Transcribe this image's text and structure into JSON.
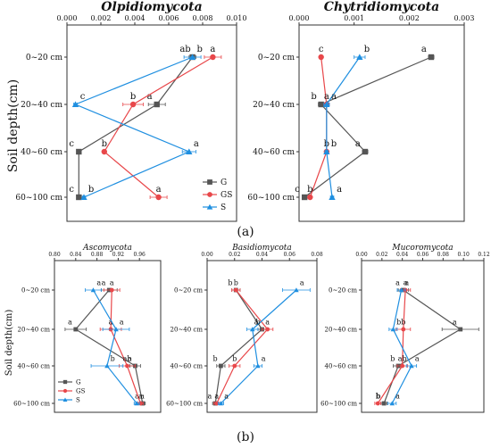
{
  "panel_labels": [
    "(a)",
    "(b)"
  ],
  "y_axis_title_a": "Soil depth(cm)",
  "y_axis_title_b": "Soil depth(cm)",
  "colors": {
    "G": "#555555",
    "GS": "#e8474a",
    "S": "#1f8fe0"
  },
  "legend": [
    {
      "key": "G",
      "label": "G",
      "marker": "square"
    },
    {
      "key": "GS",
      "label": "GS",
      "marker": "circle"
    },
    {
      "key": "S",
      "label": "S",
      "marker": "triangle"
    }
  ],
  "chart_data": [
    {
      "id": "olpidiomycota",
      "type": "line",
      "title": "Olpidiomycota",
      "ylabel": "Soil depth(cm)",
      "categories": [
        "0~20 cm",
        "20~40 cm",
        "40~60 cm",
        "60~100 cm"
      ],
      "xlim": [
        0,
        0.01
      ],
      "xticks": [
        0,
        0.002,
        0.004,
        0.006,
        0.008,
        0.01
      ],
      "xtick_labels": [
        "0.000",
        "0.002",
        "0.004",
        "0.006",
        "0.008",
        "0.010"
      ],
      "legend_position": "bottom-right",
      "series": [
        {
          "name": "G",
          "values": [
            0.0074,
            0.0053,
            0.0007,
            0.0007
          ],
          "errors": [
            0.0002,
            0.0005,
            0.0001,
            0.0001
          ],
          "letters": [
            "ab",
            "a",
            "c",
            "c"
          ]
        },
        {
          "name": "GS",
          "values": [
            0.0086,
            0.0039,
            0.0022,
            0.0054
          ],
          "errors": [
            0.0005,
            0.0006,
            0.0001,
            0.0005
          ],
          "letters": [
            "a",
            "b",
            "b",
            "a"
          ]
        },
        {
          "name": "S",
          "values": [
            0.0074,
            0.0005,
            0.0072,
            0.001
          ],
          "errors": [
            0.0005,
            0.0001,
            0.0004,
            0.0001
          ],
          "letters": [
            "b",
            "c",
            "a",
            "b"
          ]
        }
      ]
    },
    {
      "id": "chytridiomycota",
      "type": "line",
      "title": "Chytridiomycota",
      "categories": [
        "0~20 cm",
        "20~40 cm",
        "40~60 cm",
        "60~100 cm"
      ],
      "xlim": [
        0,
        0.003
      ],
      "xticks": [
        0,
        0.001,
        0.002,
        0.003
      ],
      "xtick_labels": [
        "0.000",
        "0.001",
        "0.002",
        "0.003"
      ],
      "series": [
        {
          "name": "G",
          "values": [
            0.0024,
            0.0004,
            0.0012,
            0.0001
          ],
          "errors": [
            5e-05,
            5e-05,
            5e-05,
            3e-05
          ],
          "letters": [
            "a",
            "b",
            "a",
            "c"
          ]
        },
        {
          "name": "GS",
          "values": [
            0.0004,
            0.0005,
            0.0005,
            0.0002
          ],
          "errors": [
            3e-05,
            5e-05,
            3e-05,
            3e-05
          ],
          "letters": [
            "c",
            "a",
            "b",
            "b"
          ]
        },
        {
          "name": "S",
          "values": [
            0.0011,
            0.0005,
            0.0005,
            0.0006
          ],
          "errors": [
            0.0001,
            5e-05,
            3e-05,
            3e-05
          ],
          "letters": [
            "b",
            "a",
            "b",
            "a"
          ]
        }
      ]
    },
    {
      "id": "ascomycota",
      "type": "line",
      "title": "Ascomycota",
      "ylabel": "Soil depth(cm)",
      "categories": [
        "0~20 cm",
        "20~40 cm",
        "40~60 cm",
        "60~100 cm"
      ],
      "xlim": [
        0.8,
        1.0
      ],
      "xticks": [
        0.8,
        0.84,
        0.88,
        0.92,
        0.96
      ],
      "xtick_labels": [
        "0.80",
        "0.84",
        "0.88",
        "0.92",
        "0.96"
      ],
      "legend_position": "bottom-left",
      "series": [
        {
          "name": "G",
          "values": [
            0.903,
            0.84,
            0.952,
            0.966
          ],
          "errors": [
            0.015,
            0.02,
            0.01,
            0.005
          ],
          "letters": [
            "a",
            "a",
            "a",
            "a"
          ]
        },
        {
          "name": "GS",
          "values": [
            0.908,
            0.906,
            0.937,
            0.962
          ],
          "errors": [
            0.015,
            0.02,
            0.015,
            0.005
          ],
          "letters": [
            "a",
            "a",
            "ab",
            "a"
          ]
        },
        {
          "name": "S",
          "values": [
            0.873,
            0.916,
            0.899,
            0.955
          ],
          "errors": [
            0.015,
            0.025,
            0.03,
            0.005
          ],
          "letters": [
            "a",
            "a",
            "b",
            "a"
          ]
        }
      ]
    },
    {
      "id": "basidiomycota",
      "type": "line",
      "title": "Basidiomycota",
      "categories": [
        "0~20 cm",
        "20~40 cm",
        "40~60 cm",
        "60~100 cm"
      ],
      "xlim": [
        0,
        0.08
      ],
      "xticks": [
        0,
        0.02,
        0.04,
        0.06,
        0.08
      ],
      "xtick_labels": [
        "0.00",
        "0.02",
        "0.04",
        "0.06",
        "0.08"
      ],
      "series": [
        {
          "name": "G",
          "values": [
            0.021,
            0.04,
            0.01,
            0.006
          ],
          "errors": [
            0.003,
            0.003,
            0.003,
            0.002
          ],
          "letters": [
            "b",
            "a",
            "b",
            "a"
          ]
        },
        {
          "name": "GS",
          "values": [
            0.021,
            0.044,
            0.02,
            0.007
          ],
          "errors": [
            0.003,
            0.004,
            0.004,
            0.002
          ],
          "letters": [
            "b",
            "a",
            "b",
            "a"
          ]
        },
        {
          "name": "S",
          "values": [
            0.065,
            0.033,
            0.037,
            0.01
          ],
          "errors": [
            0.01,
            0.004,
            0.003,
            0.002
          ],
          "letters": [
            "a",
            "b",
            "a",
            "a"
          ]
        }
      ]
    },
    {
      "id": "mucoromycota",
      "type": "line",
      "title": "Mucoromycota",
      "categories": [
        "0~20 cm",
        "20~40 cm",
        "40~60 cm",
        "60~100 cm"
      ],
      "xlim": [
        0,
        0.12
      ],
      "xticks": [
        0,
        0.02,
        0.04,
        0.06,
        0.08,
        0.1,
        0.12
      ],
      "xtick_labels": [
        "0.00",
        "0.02",
        "0.04",
        "0.06",
        "0.08",
        "0.10",
        "0.12"
      ],
      "series": [
        {
          "name": "G",
          "values": [
            0.041,
            0.097,
            0.036,
            0.022
          ],
          "errors": [
            0.005,
            0.018,
            0.005,
            0.003
          ],
          "letters": [
            "a",
            "a",
            "b",
            "b"
          ]
        },
        {
          "name": "GS",
          "values": [
            0.043,
            0.041,
            0.04,
            0.016
          ],
          "errors": [
            0.005,
            0.007,
            0.005,
            0.003
          ],
          "letters": [
            "a",
            "b",
            "ab",
            "b"
          ]
        },
        {
          "name": "S",
          "values": [
            0.039,
            0.031,
            0.049,
            0.03
          ],
          "errors": [
            0.004,
            0.004,
            0.005,
            0.004
          ],
          "letters": [
            "a",
            "b",
            "a",
            "a"
          ]
        }
      ]
    }
  ]
}
